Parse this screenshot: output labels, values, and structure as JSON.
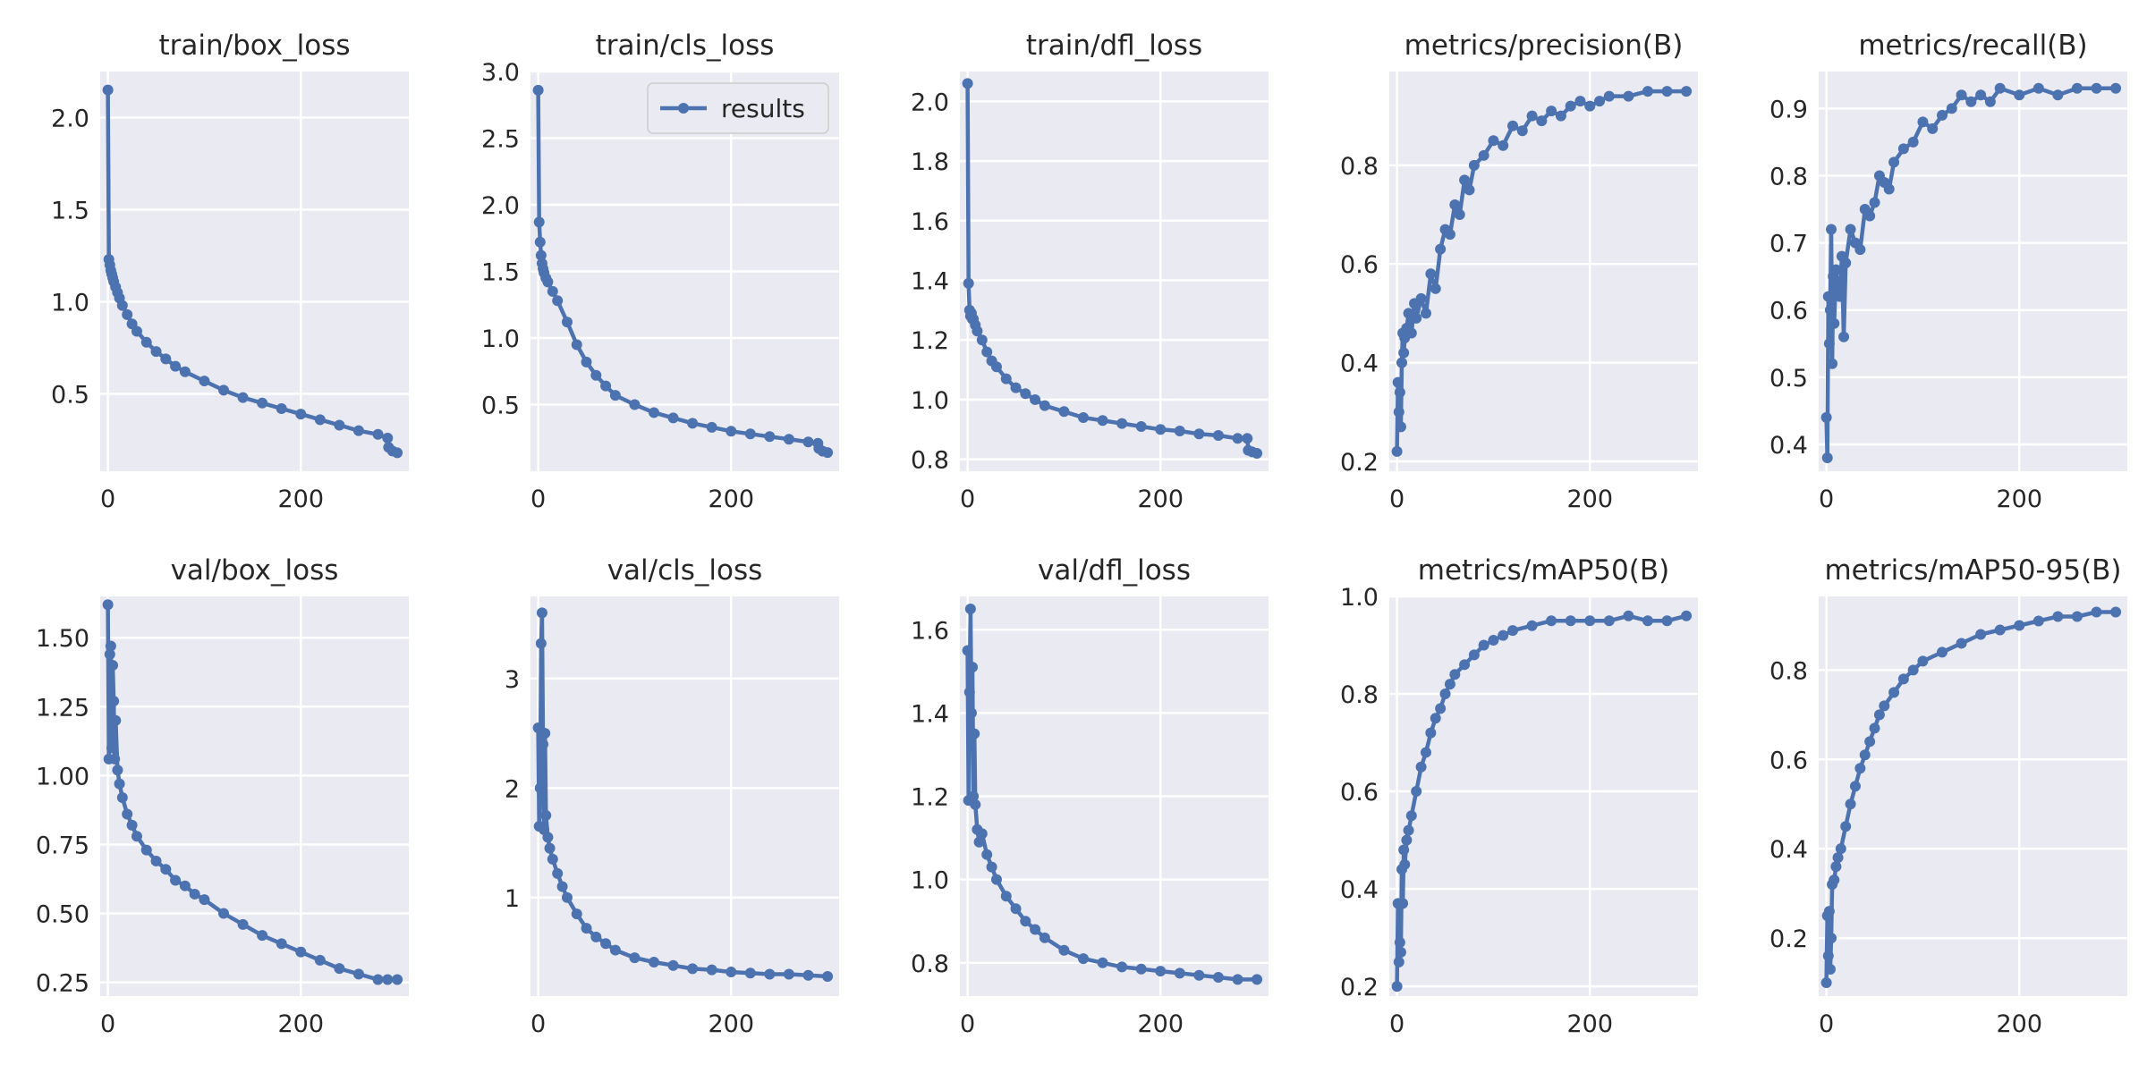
{
  "figure": {
    "background": "#ffffff",
    "panel_bg": "#eaeaf2",
    "grid_color": "#ffffff",
    "series_color": "#4c72b0"
  },
  "chart_data": [
    {
      "type": "line",
      "title": "train/box_loss",
      "legend": [],
      "xlim": [
        -8,
        312
      ],
      "ylim": [
        0.08,
        2.25
      ],
      "xticks": [
        0,
        200
      ],
      "yticks": [
        0.5,
        1.0,
        1.5,
        2.0
      ],
      "ytick_labels": [
        "0.5",
        "1.0",
        "1.5",
        "2.0"
      ],
      "series": [
        {
          "x": [
            0,
            1,
            2,
            3,
            4,
            5,
            6,
            8,
            10,
            12,
            15,
            20,
            25,
            30,
            40,
            50,
            60,
            70,
            80,
            100,
            120,
            140,
            160,
            180,
            200,
            220,
            240,
            260,
            280,
            290,
            291,
            295,
            300
          ],
          "y": [
            2.15,
            1.23,
            1.2,
            1.17,
            1.15,
            1.13,
            1.11,
            1.08,
            1.05,
            1.02,
            0.98,
            0.93,
            0.88,
            0.84,
            0.78,
            0.73,
            0.69,
            0.65,
            0.62,
            0.57,
            0.52,
            0.48,
            0.45,
            0.42,
            0.39,
            0.36,
            0.33,
            0.3,
            0.28,
            0.26,
            0.21,
            0.19,
            0.18
          ]
        }
      ]
    },
    {
      "type": "line",
      "title": "train/cls_loss",
      "legend": [
        "results"
      ],
      "xlim": [
        -8,
        312
      ],
      "ylim": [
        0.0,
        3.0
      ],
      "xticks": [
        0,
        200
      ],
      "yticks": [
        0.5,
        1.0,
        1.5,
        2.0,
        2.5,
        3.0
      ],
      "ytick_labels": [
        "0.5",
        "1.0",
        "1.5",
        "2.0",
        "2.5",
        "3.0"
      ],
      "series": [
        {
          "name": "results",
          "x": [
            0,
            1,
            2,
            3,
            4,
            5,
            6,
            8,
            10,
            15,
            20,
            30,
            40,
            50,
            60,
            70,
            80,
            100,
            120,
            140,
            160,
            180,
            200,
            220,
            240,
            260,
            280,
            290,
            291,
            295,
            300
          ],
          "y": [
            2.86,
            1.87,
            1.72,
            1.62,
            1.56,
            1.52,
            1.49,
            1.45,
            1.42,
            1.35,
            1.28,
            1.12,
            0.95,
            0.82,
            0.72,
            0.64,
            0.57,
            0.5,
            0.44,
            0.4,
            0.36,
            0.33,
            0.3,
            0.28,
            0.26,
            0.24,
            0.22,
            0.21,
            0.17,
            0.15,
            0.14
          ]
        }
      ]
    },
    {
      "type": "line",
      "title": "train/dfl_loss",
      "legend": [],
      "xlim": [
        -8,
        312
      ],
      "ylim": [
        0.76,
        2.1
      ],
      "xticks": [
        0,
        200
      ],
      "yticks": [
        0.8,
        1.0,
        1.2,
        1.4,
        1.6,
        1.8,
        2.0
      ],
      "ytick_labels": [
        "0.8",
        "1.0",
        "1.2",
        "1.4",
        "1.6",
        "1.8",
        "2.0"
      ],
      "series": [
        {
          "x": [
            0,
            1,
            2,
            3,
            4,
            5,
            6,
            8,
            10,
            15,
            20,
            25,
            30,
            40,
            50,
            60,
            70,
            80,
            100,
            120,
            140,
            160,
            180,
            200,
            220,
            240,
            260,
            280,
            290,
            291,
            295,
            300
          ],
          "y": [
            2.06,
            1.39,
            1.3,
            1.28,
            1.29,
            1.27,
            1.27,
            1.25,
            1.23,
            1.2,
            1.16,
            1.13,
            1.11,
            1.07,
            1.04,
            1.02,
            1.0,
            0.98,
            0.96,
            0.94,
            0.93,
            0.92,
            0.91,
            0.9,
            0.895,
            0.885,
            0.88,
            0.87,
            0.87,
            0.83,
            0.825,
            0.82
          ]
        }
      ]
    },
    {
      "type": "line",
      "title": "metrics/precision(B)",
      "legend": [],
      "xlim": [
        -8,
        312
      ],
      "ylim": [
        0.18,
        0.99
      ],
      "xticks": [
        0,
        200
      ],
      "yticks": [
        0.2,
        0.4,
        0.6,
        0.8
      ],
      "ytick_labels": [
        "0.2",
        "0.4",
        "0.6",
        "0.8"
      ],
      "series": [
        {
          "x": [
            0,
            1,
            2,
            3,
            4,
            5,
            6,
            7,
            8,
            10,
            12,
            15,
            18,
            20,
            25,
            30,
            35,
            40,
            45,
            50,
            55,
            60,
            65,
            70,
            75,
            80,
            90,
            100,
            110,
            120,
            130,
            140,
            150,
            160,
            170,
            180,
            190,
            200,
            210,
            220,
            240,
            260,
            280,
            300
          ],
          "y": [
            0.22,
            0.36,
            0.3,
            0.34,
            0.27,
            0.4,
            0.46,
            0.42,
            0.45,
            0.47,
            0.5,
            0.46,
            0.52,
            0.49,
            0.53,
            0.5,
            0.58,
            0.55,
            0.63,
            0.67,
            0.66,
            0.72,
            0.7,
            0.77,
            0.75,
            0.8,
            0.82,
            0.85,
            0.84,
            0.88,
            0.87,
            0.9,
            0.89,
            0.91,
            0.9,
            0.92,
            0.93,
            0.92,
            0.93,
            0.94,
            0.94,
            0.95,
            0.95,
            0.95
          ]
        }
      ]
    },
    {
      "type": "line",
      "title": "metrics/recall(B)",
      "legend": [],
      "xlim": [
        -8,
        312
      ],
      "ylim": [
        0.36,
        0.955
      ],
      "xticks": [
        0,
        200
      ],
      "yticks": [
        0.4,
        0.5,
        0.6,
        0.7,
        0.8,
        0.9
      ],
      "ytick_labels": [
        "0.4",
        "0.5",
        "0.6",
        "0.7",
        "0.8",
        "0.9"
      ],
      "series": [
        {
          "x": [
            0,
            1,
            2,
            3,
            4,
            5,
            6,
            7,
            8,
            10,
            12,
            14,
            16,
            18,
            20,
            25,
            30,
            35,
            40,
            45,
            50,
            55,
            60,
            65,
            70,
            80,
            90,
            100,
            110,
            120,
            130,
            140,
            150,
            160,
            170,
            180,
            200,
            220,
            240,
            260,
            280,
            300
          ],
          "y": [
            0.44,
            0.38,
            0.62,
            0.55,
            0.6,
            0.72,
            0.52,
            0.65,
            0.58,
            0.66,
            0.63,
            0.62,
            0.68,
            0.56,
            0.67,
            0.72,
            0.7,
            0.69,
            0.75,
            0.74,
            0.76,
            0.8,
            0.79,
            0.78,
            0.82,
            0.84,
            0.85,
            0.88,
            0.87,
            0.89,
            0.9,
            0.92,
            0.91,
            0.92,
            0.91,
            0.93,
            0.92,
            0.93,
            0.92,
            0.93,
            0.93,
            0.93
          ]
        }
      ]
    },
    {
      "type": "line",
      "title": "val/box_loss",
      "legend": [],
      "xlim": [
        -8,
        312
      ],
      "ylim": [
        0.2,
        1.65
      ],
      "xticks": [
        0,
        200
      ],
      "yticks": [
        0.25,
        0.5,
        0.75,
        1.0,
        1.25,
        1.5
      ],
      "ytick_labels": [
        "0.25",
        "0.50",
        "0.75",
        "1.00",
        "1.25",
        "1.50"
      ],
      "series": [
        {
          "x": [
            0,
            1,
            2,
            3,
            4,
            5,
            6,
            7,
            8,
            10,
            12,
            15,
            20,
            25,
            30,
            40,
            50,
            60,
            70,
            80,
            90,
            100,
            120,
            140,
            160,
            180,
            200,
            220,
            240,
            260,
            280,
            290,
            300
          ],
          "y": [
            1.62,
            1.06,
            1.44,
            1.47,
            1.1,
            1.4,
            1.27,
            1.06,
            1.2,
            1.02,
            0.97,
            0.92,
            0.86,
            0.82,
            0.78,
            0.73,
            0.69,
            0.66,
            0.62,
            0.6,
            0.57,
            0.55,
            0.5,
            0.46,
            0.42,
            0.39,
            0.36,
            0.33,
            0.3,
            0.28,
            0.26,
            0.26,
            0.26
          ]
        }
      ]
    },
    {
      "type": "line",
      "title": "val/cls_loss",
      "legend": [],
      "xlim": [
        -8,
        312
      ],
      "ylim": [
        0.1,
        3.75
      ],
      "xticks": [
        0,
        200
      ],
      "yticks": [
        1,
        2,
        3
      ],
      "ytick_labels": [
        "1",
        "2",
        "3"
      ],
      "series": [
        {
          "x": [
            0,
            1,
            2,
            3,
            4,
            5,
            6,
            7,
            8,
            10,
            12,
            15,
            20,
            25,
            30,
            40,
            50,
            60,
            70,
            80,
            100,
            120,
            140,
            160,
            180,
            200,
            220,
            240,
            260,
            280,
            300
          ],
          "y": [
            2.55,
            1.65,
            2.0,
            3.32,
            3.6,
            2.4,
            1.62,
            2.5,
            1.75,
            1.55,
            1.45,
            1.35,
            1.22,
            1.1,
            1.0,
            0.85,
            0.72,
            0.64,
            0.58,
            0.52,
            0.45,
            0.41,
            0.38,
            0.35,
            0.34,
            0.32,
            0.31,
            0.3,
            0.3,
            0.29,
            0.28
          ]
        }
      ]
    },
    {
      "type": "line",
      "title": "val/dfl_loss",
      "legend": [],
      "xlim": [
        -8,
        312
      ],
      "ylim": [
        0.72,
        1.68
      ],
      "xticks": [
        0,
        200
      ],
      "yticks": [
        0.8,
        1.0,
        1.2,
        1.4,
        1.6
      ],
      "ytick_labels": [
        "0.8",
        "1.0",
        "1.2",
        "1.4",
        "1.6"
      ],
      "series": [
        {
          "x": [
            0,
            1,
            2,
            3,
            4,
            5,
            6,
            7,
            8,
            10,
            12,
            15,
            20,
            25,
            30,
            40,
            50,
            60,
            70,
            80,
            100,
            120,
            140,
            160,
            180,
            200,
            220,
            240,
            260,
            280,
            300
          ],
          "y": [
            1.55,
            1.19,
            1.45,
            1.65,
            1.4,
            1.51,
            1.2,
            1.35,
            1.18,
            1.12,
            1.09,
            1.11,
            1.06,
            1.03,
            1.0,
            0.96,
            0.93,
            0.9,
            0.88,
            0.86,
            0.83,
            0.81,
            0.8,
            0.79,
            0.785,
            0.78,
            0.775,
            0.77,
            0.765,
            0.76,
            0.76
          ]
        }
      ]
    },
    {
      "type": "line",
      "title": "metrics/mAP50(B)",
      "legend": [],
      "xlim": [
        -8,
        312
      ],
      "ylim": [
        0.18,
        1.0
      ],
      "xticks": [
        0,
        200
      ],
      "yticks": [
        0.2,
        0.4,
        0.6,
        0.8,
        1.0
      ],
      "ytick_labels": [
        "0.2",
        "0.4",
        "0.6",
        "0.8",
        "1.0"
      ],
      "series": [
        {
          "x": [
            0,
            1,
            2,
            3,
            4,
            5,
            6,
            7,
            8,
            10,
            12,
            15,
            20,
            25,
            30,
            35,
            40,
            45,
            50,
            55,
            60,
            70,
            80,
            90,
            100,
            110,
            120,
            140,
            160,
            180,
            200,
            220,
            240,
            260,
            280,
            300
          ],
          "y": [
            0.2,
            0.37,
            0.25,
            0.29,
            0.27,
            0.44,
            0.37,
            0.48,
            0.45,
            0.5,
            0.52,
            0.55,
            0.6,
            0.65,
            0.68,
            0.72,
            0.75,
            0.77,
            0.8,
            0.82,
            0.84,
            0.86,
            0.88,
            0.9,
            0.91,
            0.92,
            0.93,
            0.94,
            0.95,
            0.95,
            0.95,
            0.95,
            0.96,
            0.95,
            0.95,
            0.96
          ]
        }
      ]
    },
    {
      "type": "line",
      "title": "metrics/mAP50-95(B)",
      "legend": [],
      "xlim": [
        -8,
        312
      ],
      "ylim": [
        0.07,
        0.965
      ],
      "xticks": [
        0,
        200
      ],
      "yticks": [
        0.2,
        0.4,
        0.6,
        0.8
      ],
      "ytick_labels": [
        "0.2",
        "0.4",
        "0.6",
        "0.8"
      ],
      "series": [
        {
          "x": [
            0,
            1,
            2,
            3,
            4,
            5,
            6,
            8,
            10,
            12,
            15,
            20,
            25,
            30,
            35,
            40,
            45,
            50,
            55,
            60,
            70,
            80,
            90,
            100,
            120,
            140,
            160,
            180,
            200,
            220,
            240,
            260,
            280,
            300
          ],
          "y": [
            0.1,
            0.25,
            0.16,
            0.26,
            0.13,
            0.2,
            0.32,
            0.33,
            0.36,
            0.38,
            0.4,
            0.45,
            0.5,
            0.54,
            0.58,
            0.61,
            0.64,
            0.67,
            0.7,
            0.72,
            0.75,
            0.78,
            0.8,
            0.82,
            0.84,
            0.86,
            0.88,
            0.89,
            0.9,
            0.91,
            0.92,
            0.92,
            0.93,
            0.93
          ]
        }
      ]
    }
  ]
}
